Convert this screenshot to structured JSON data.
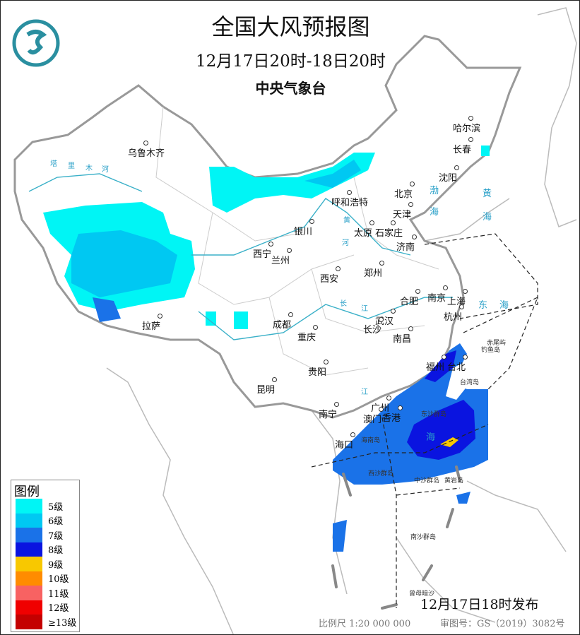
{
  "header": {
    "title": "全国大风预报图",
    "period": "12月17日20时-18日20时",
    "agency": "中央气象台",
    "logo_icon": "cma-logo"
  },
  "legend": {
    "title": "图例",
    "items": [
      {
        "label": "5级",
        "color": "#00f5f5"
      },
      {
        "label": "6级",
        "color": "#00c8f2"
      },
      {
        "label": "7级",
        "color": "#1a72e8"
      },
      {
        "label": "8级",
        "color": "#0a14e0"
      },
      {
        "label": "9级",
        "color": "#f8c800"
      },
      {
        "label": "10级",
        "color": "#ff8c00"
      },
      {
        "label": "11级",
        "color": "#f86262"
      },
      {
        "label": "12级",
        "color": "#f00000"
      },
      {
        "label": "≥13级",
        "color": "#c40000"
      }
    ]
  },
  "cities": [
    "乌鲁木齐",
    "哈尔滨",
    "长春",
    "沈阳",
    "北京",
    "天津",
    "呼和浩特",
    "石家庄",
    "太原",
    "济南",
    "银川",
    "西宁",
    "兰州",
    "西安",
    "郑州",
    "合肥",
    "南京",
    "上海",
    "杭州",
    "武汉",
    "南昌",
    "长沙",
    "成都",
    "重庆",
    "贵阳",
    "昆明",
    "拉萨",
    "南宁",
    "广州",
    "澳门",
    "香港",
    "海口",
    "福州",
    "台北"
  ],
  "islands": [
    "台湾岛",
    "海南岛",
    "东沙群岛",
    "西沙群岛",
    "中沙群岛",
    "黄岩岛",
    "南沙群岛",
    "曾母暗沙",
    "赤尾屿",
    "钓鱼岛"
  ],
  "seas": [
    "渤",
    "海",
    "黄",
    "海",
    "东",
    "海",
    "海"
  ],
  "rivers": [
    "塔",
    "里",
    "木",
    "河",
    "黄",
    "河",
    "长",
    "江",
    "江"
  ],
  "footer": {
    "issued": "12月17日18时发布",
    "scale": "比例尺 1:20 000 000",
    "review_no": "审图号：GS（2019）3082号"
  }
}
